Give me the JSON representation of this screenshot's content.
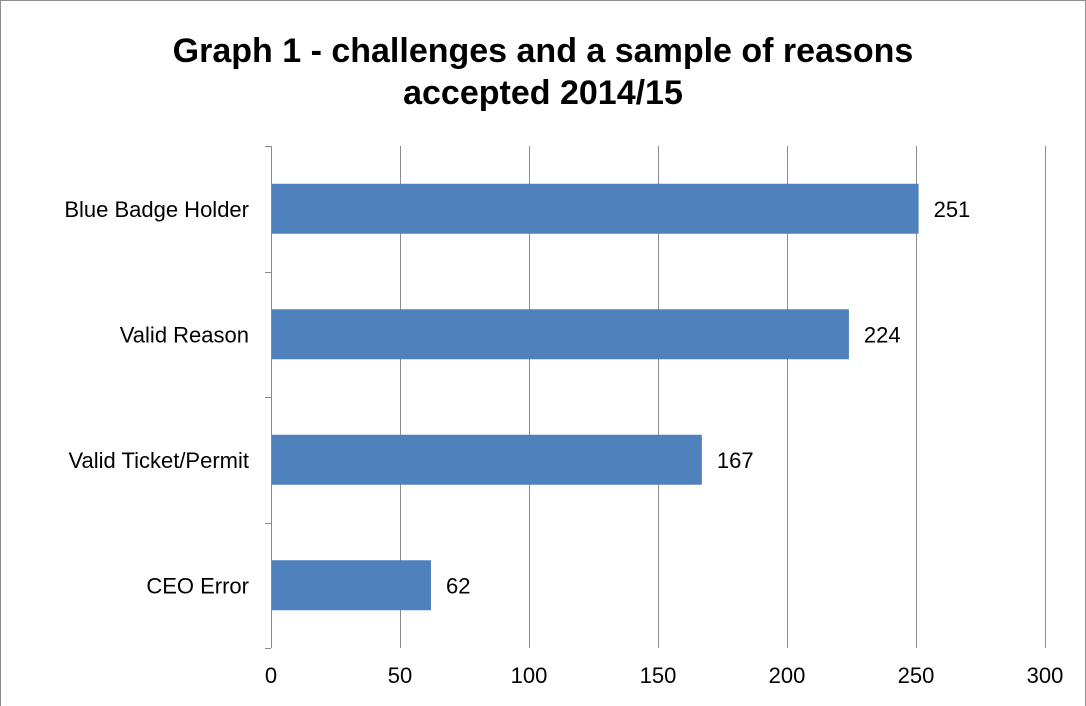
{
  "chart_data": {
    "type": "bar",
    "orientation": "horizontal",
    "title": "Graph 1 - challenges and a sample of reasons accepted 2014/15",
    "title_lines": [
      "Graph 1 - challenges and a sample of reasons",
      "accepted 2014/15"
    ],
    "categories": [
      "Blue Badge Holder",
      "Valid Reason",
      "Valid Ticket/Permit",
      "CEO Error"
    ],
    "values": [
      251,
      224,
      167,
      62
    ],
    "data_labels": [
      "251",
      "224",
      "167",
      "62"
    ],
    "xlim": [
      0,
      300
    ],
    "x_ticks": [
      0,
      50,
      100,
      150,
      200,
      250,
      300
    ],
    "x_tick_labels": [
      "0",
      "50",
      "100",
      "150",
      "200",
      "250",
      "300"
    ],
    "xlabel": "",
    "ylabel": "",
    "grid": true,
    "legend": "none",
    "colors": {
      "bar": "#4F81BD",
      "grid": "#8C8C8C",
      "axis": "#8C8C8C",
      "text": "#000000"
    }
  }
}
